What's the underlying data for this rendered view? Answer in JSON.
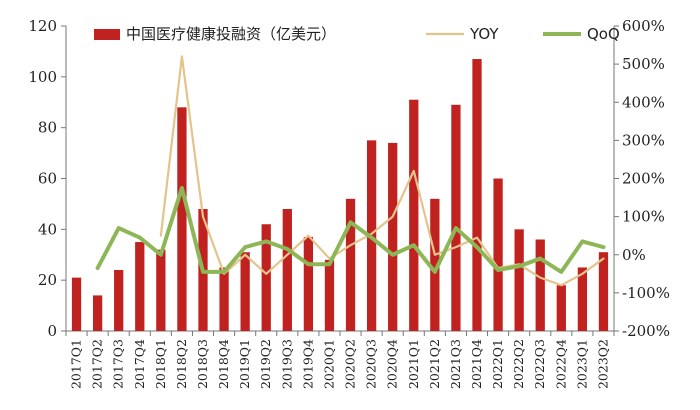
{
  "chart_data": {
    "type": "bar",
    "categories": [
      "2017Q1",
      "2017Q2",
      "2017Q3",
      "2017Q4",
      "2018Q1",
      "2018Q2",
      "2018Q3",
      "2018Q4",
      "2019Q1",
      "2019Q2",
      "2019Q3",
      "2019Q4",
      "2020Q1",
      "2020Q2",
      "2020Q3",
      "2020Q4",
      "2021Q1",
      "2021Q2",
      "2021Q3",
      "2021Q4",
      "2022Q1",
      "2022Q2",
      "2022Q3",
      "2022Q4",
      "2023Q1",
      "2023Q2"
    ],
    "series": [
      {
        "name": "中国医疗健康投融资（亿美元）",
        "type": "bar",
        "axis": "left",
        "color": "#C0221F",
        "values": [
          21,
          14,
          24,
          35,
          32,
          88,
          48,
          25,
          31,
          42,
          48,
          37,
          28,
          52,
          75,
          74,
          91,
          52,
          89,
          107,
          60,
          40,
          36,
          18,
          25,
          31
        ]
      },
      {
        "name": "YOY",
        "type": "line",
        "axis": "right",
        "color": "#E3C48C",
        "values": [
          null,
          null,
          null,
          null,
          50,
          520,
          100,
          -50,
          0,
          -50,
          0,
          50,
          -10,
          25,
          55,
          100,
          220,
          0,
          20,
          45,
          -35,
          -25,
          -60,
          -80,
          -50,
          -10
        ]
      },
      {
        "name": "QoQ",
        "type": "line",
        "axis": "right",
        "color": "#8DB757",
        "values": [
          null,
          -35,
          70,
          45,
          0,
          175,
          -45,
          -45,
          20,
          35,
          15,
          -25,
          -25,
          85,
          45,
          0,
          25,
          -45,
          70,
          20,
          -40,
          -30,
          -10,
          -45,
          35,
          20
        ]
      }
    ],
    "ylim_left": [
      0,
      120
    ],
    "yticks_left": [
      "0",
      "20",
      "40",
      "60",
      "80",
      "100",
      "120"
    ],
    "ylim_right": [
      -200,
      600
    ],
    "yticks_right": [
      "-200%",
      "-100%",
      "0%",
      "100%",
      "200%",
      "300%",
      "400%",
      "500%",
      "600%"
    ],
    "legend_position": "top",
    "grid": false
  }
}
